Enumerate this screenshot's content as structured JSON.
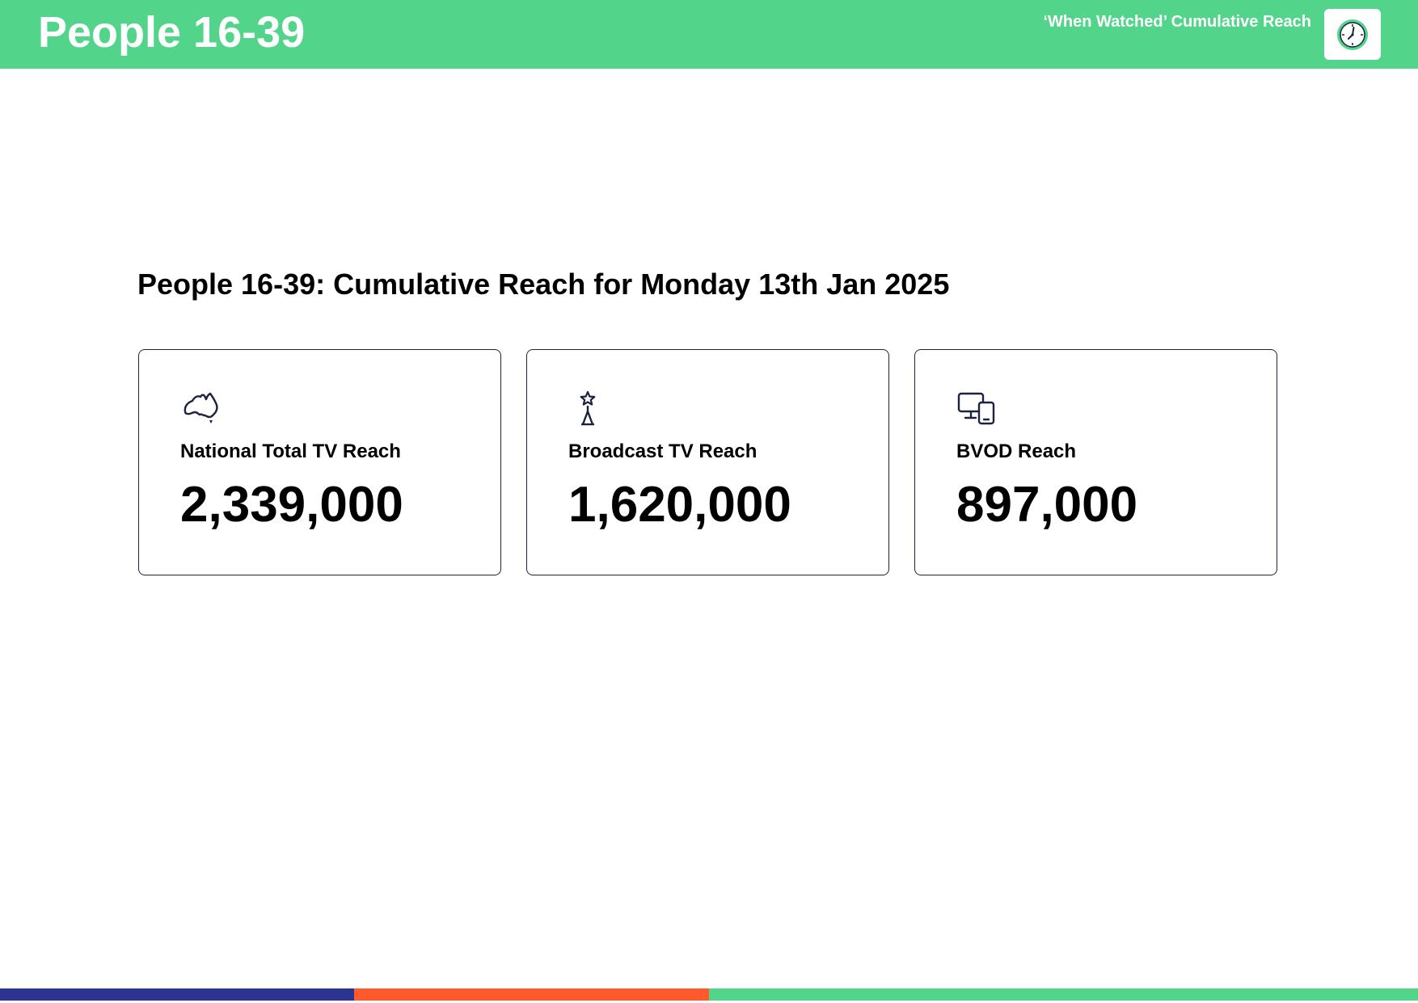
{
  "header": {
    "title": "People 16-39",
    "subtitle": "‘When Watched’ Cumulative Reach",
    "badge_icon": "clock-icon",
    "background_color": "#52D48B"
  },
  "main": {
    "heading": "People 16-39: Cumulative Reach for Monday 13th Jan 2025",
    "cards": [
      {
        "icon": "australia-map-icon",
        "label": "National Total TV Reach",
        "value": "2,339,000"
      },
      {
        "icon": "broadcast-tower-icon",
        "label": "Broadcast TV Reach",
        "value": "1,620,000"
      },
      {
        "icon": "devices-icon",
        "label": "BVOD Reach",
        "value": "897,000"
      }
    ]
  },
  "footer": {
    "stripe_colors": [
      "#2C3491",
      "#FF5A2C",
      "#52D48B"
    ]
  }
}
